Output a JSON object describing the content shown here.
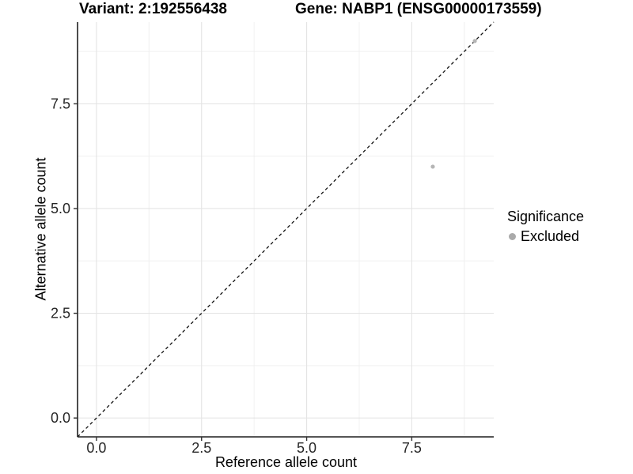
{
  "header": {
    "variant_title": "Variant: 2:192556438",
    "gene_title": "Gene: NABP1 (ENSG00000173559)"
  },
  "chart_data": {
    "type": "scatter",
    "title": "Variant: 2:192556438   Gene: NABP1 (ENSG00000173559)",
    "xlabel": "Reference allele count",
    "ylabel": "Alternative allele count",
    "xlim": [
      -0.45,
      9.45
    ],
    "ylim": [
      -0.45,
      9.45
    ],
    "x_ticks": [
      {
        "value": 0,
        "label": "0.0"
      },
      {
        "value": 2.5,
        "label": "2.5"
      },
      {
        "value": 5,
        "label": "5.0"
      },
      {
        "value": 7.5,
        "label": "7.5"
      }
    ],
    "y_ticks": [
      {
        "value": 0,
        "label": "0.0"
      },
      {
        "value": 2.5,
        "label": "2.5"
      },
      {
        "value": 5,
        "label": "5.0"
      },
      {
        "value": 7.5,
        "label": "7.5"
      }
    ],
    "x_minor_ticks": [
      1.25,
      3.75,
      6.25,
      8.75
    ],
    "y_minor_ticks": [
      1.25,
      3.75,
      6.25,
      8.75
    ],
    "grid": true,
    "identity_line": {
      "style": "dashed",
      "from": [
        -0.45,
        -0.45
      ],
      "to": [
        9.45,
        9.45
      ]
    },
    "series": [
      {
        "name": "Excluded",
        "color": "#b5b5b5",
        "points": [
          [
            8,
            6
          ],
          [
            9,
            9
          ]
        ]
      }
    ],
    "legend_position": "right"
  },
  "legend": {
    "title": "Significance",
    "items": [
      {
        "label": "Excluded",
        "color": "#aaaaaa"
      }
    ]
  },
  "colors": {
    "grid_major": "#e4e4e4",
    "grid_minor": "#f0f0f0",
    "axis_line": "#1f1f1f",
    "tick_mark": "#333333",
    "tick_text": "#262626",
    "identity_line": "#111111",
    "point": "#bfbfbf"
  }
}
